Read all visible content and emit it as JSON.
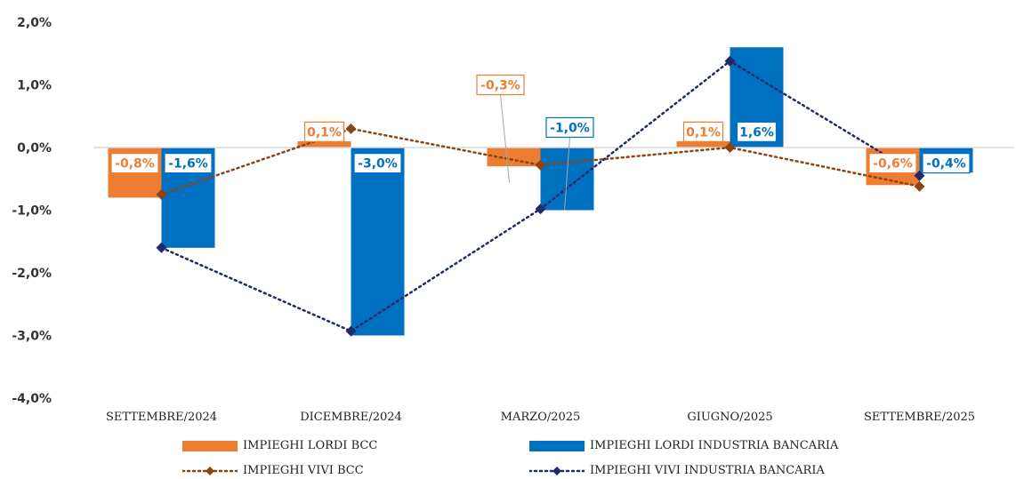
{
  "chart_data": {
    "type": "bar",
    "categories": [
      "SETTEMBRE/2024",
      "DICEMBRE/2024",
      "MARZO/2025",
      "GIUGNO/2025",
      "SETTEMBRE/2025"
    ],
    "ylim": [
      -4.0,
      2.0
    ],
    "yticks": [
      2.0,
      1.0,
      0.0,
      -1.0,
      -2.0,
      -3.0,
      -4.0
    ],
    "ytick_labels": [
      "2,0%",
      "1,0%",
      "0,0%",
      "-1,0%",
      "-2,0%",
      "-3,0%",
      "-4,0%"
    ],
    "grid": false,
    "legend_position": "bottom",
    "series": [
      {
        "name": "IMPIEGHI LORDI BCC",
        "kind": "bar",
        "color": "#ED7D31",
        "values": [
          -0.8,
          0.1,
          -0.3,
          0.1,
          -0.6
        ],
        "labels": [
          "-0,8%",
          "0,1%",
          "-0,3%",
          "0,1%",
          "-0,6%"
        ]
      },
      {
        "name": "IMPIEGHI LORDI INDUSTRIA BANCARIA",
        "kind": "bar",
        "color": "#0070C0",
        "values": [
          -1.6,
          -3.0,
          -1.0,
          1.6,
          -0.4
        ],
        "labels": [
          "-1,6%",
          "-3,0%",
          "-1,0%",
          "1,6%",
          "-0,4%"
        ]
      },
      {
        "name": "IMPIEGHI VIVI BCC",
        "kind": "line",
        "style": "dotted",
        "marker": "diamond",
        "color": "#8B4513",
        "values": [
          -0.75,
          0.3,
          -0.28,
          0.0,
          -0.62
        ]
      },
      {
        "name": "IMPIEGHI VIVI INDUSTRIA BANCARIA",
        "kind": "line",
        "style": "dotted",
        "marker": "diamond",
        "color": "#1F2A6B",
        "values": [
          -1.6,
          -2.93,
          -0.98,
          1.38,
          -0.45
        ]
      }
    ]
  }
}
